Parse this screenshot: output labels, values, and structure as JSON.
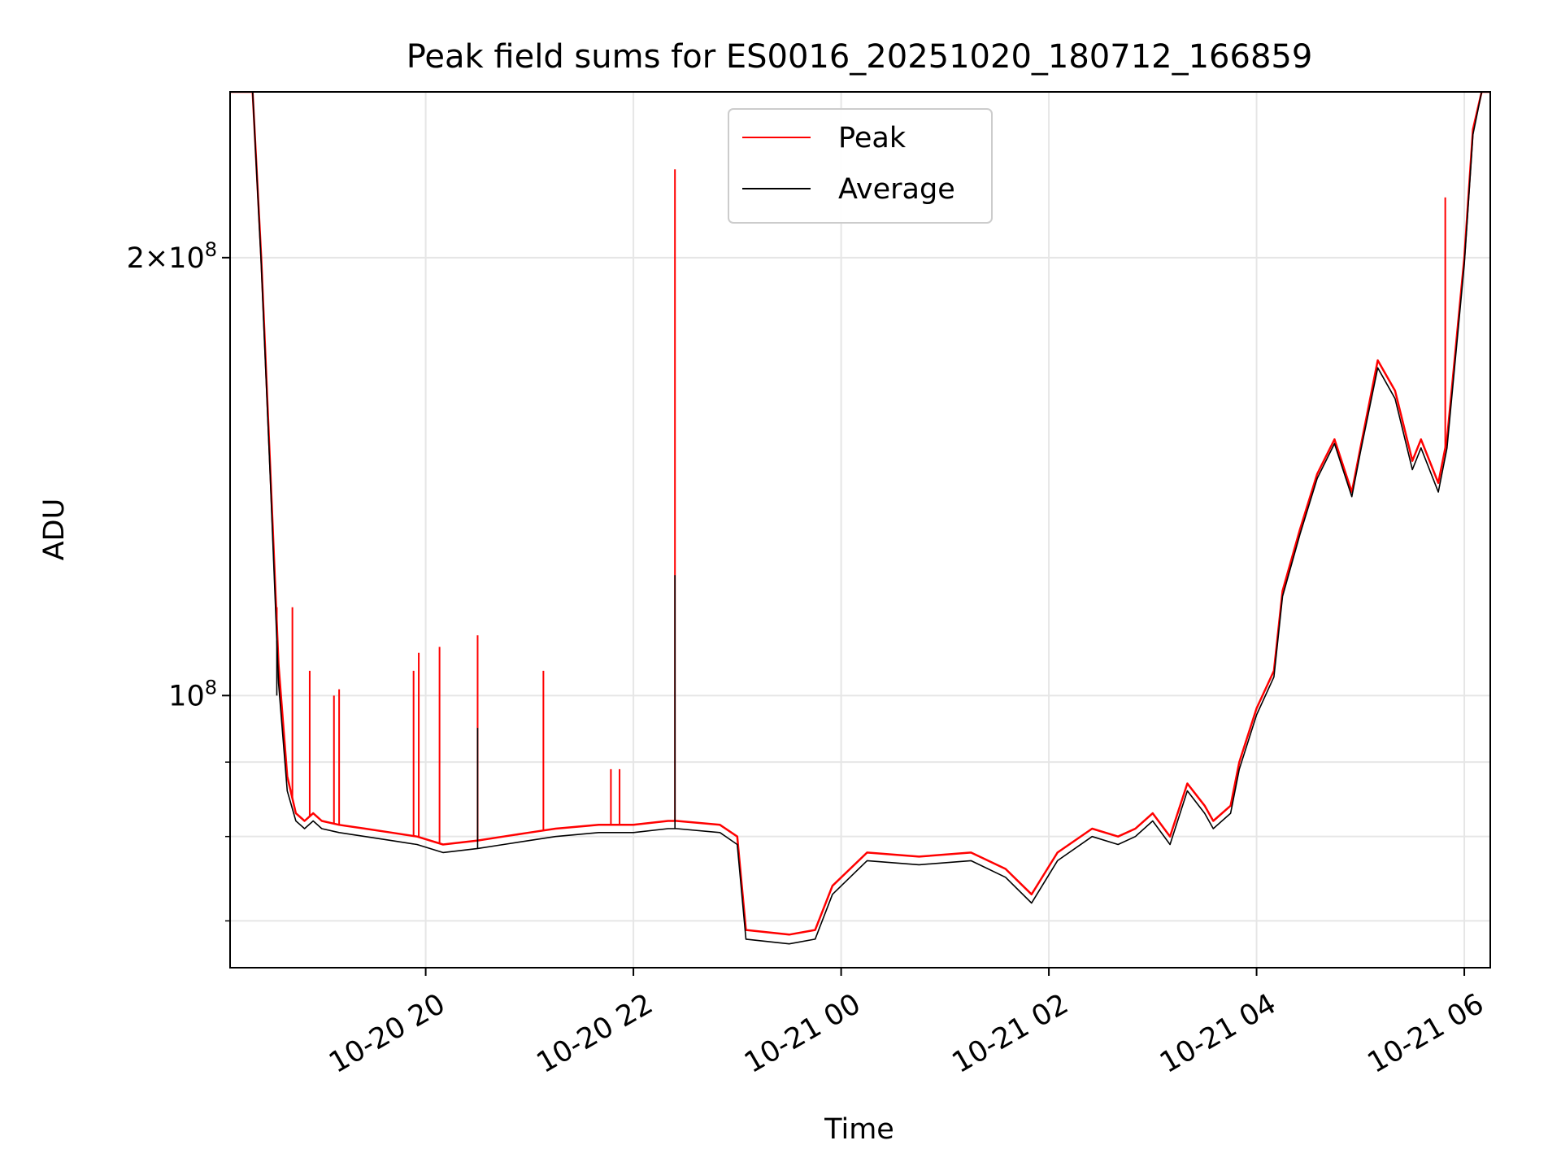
{
  "chart_data": {
    "type": "line",
    "title": "Peak field sums for ES0016_20251020_180712_166859",
    "xlabel": "Time",
    "ylabel": "ADU",
    "y_scale": "log",
    "xlim": [
      "2025-10-20 18:07",
      "2025-10-21 06:15"
    ],
    "ylim": [
      65000000,
      260000000
    ],
    "grid": true,
    "legend_position": "top-center",
    "x_ticks": [
      "10-20 20",
      "10-20 22",
      "10-21 00",
      "10-21 02",
      "10-21 04",
      "10-21 06"
    ],
    "y_major_ticks": [
      {
        "value": 100000000,
        "base": "10",
        "exp": "8"
      },
      {
        "value": 200000000,
        "coef": "2",
        "base": "10",
        "exp": "8"
      }
    ],
    "y_minor_ticks": [
      70000000,
      80000000,
      90000000
    ],
    "series": [
      {
        "name": "Peak",
        "color": "#ff0000",
        "x": [
          "2025-10-20 18:07",
          "2025-10-20 18:20",
          "2025-10-20 18:25",
          "2025-10-20 18:30",
          "2025-10-20 18:35",
          "2025-10-20 18:40",
          "2025-10-20 18:45",
          "2025-10-20 18:50",
          "2025-10-20 18:55",
          "2025-10-20 19:00",
          "2025-10-20 19:10",
          "2025-10-20 19:25",
          "2025-10-20 19:40",
          "2025-10-20 19:55",
          "2025-10-20 20:10",
          "2025-10-20 20:30",
          "2025-10-20 20:45",
          "2025-10-20 21:00",
          "2025-10-20 21:15",
          "2025-10-20 21:40",
          "2025-10-20 22:00",
          "2025-10-20 22:20",
          "2025-10-20 22:25",
          "2025-10-20 22:50",
          "2025-10-20 23:00",
          "2025-10-20 23:05",
          "2025-10-20 23:30",
          "2025-10-20 23:45",
          "2025-10-20 23:55",
          "2025-10-21 00:15",
          "2025-10-21 00:45",
          "2025-10-21 01:15",
          "2025-10-21 01:35",
          "2025-10-21 01:50",
          "2025-10-21 02:05",
          "2025-10-21 02:25",
          "2025-10-21 02:40",
          "2025-10-21 02:50",
          "2025-10-21 03:00",
          "2025-10-21 03:10",
          "2025-10-21 03:20",
          "2025-10-21 03:30",
          "2025-10-21 03:35",
          "2025-10-21 03:45",
          "2025-10-21 03:50",
          "2025-10-21 04:00",
          "2025-10-21 04:10",
          "2025-10-21 04:15",
          "2025-10-21 04:25",
          "2025-10-21 04:35",
          "2025-10-21 04:45",
          "2025-10-21 04:55",
          "2025-10-21 05:00",
          "2025-10-21 05:10",
          "2025-10-21 05:20",
          "2025-10-21 05:30",
          "2025-10-21 05:35",
          "2025-10-21 05:45",
          "2025-10-21 05:50",
          "2025-10-21 06:00",
          "2025-10-21 06:05",
          "2025-10-21 06:10",
          "2025-10-21 06:15"
        ],
        "values": [
          260000000,
          260000000,
          200000000,
          145000000,
          105000000,
          88000000,
          83000000,
          82000000,
          83000000,
          82000000,
          81500000,
          81000000,
          80500000,
          80000000,
          79000000,
          79500000,
          80000000,
          80500000,
          81000000,
          81500000,
          81500000,
          82000000,
          82000000,
          81500000,
          80000000,
          69000000,
          68500000,
          69000000,
          74000000,
          78000000,
          77500000,
          78000000,
          76000000,
          73000000,
          78000000,
          81000000,
          80000000,
          81000000,
          83000000,
          80000000,
          87000000,
          84000000,
          82000000,
          84000000,
          90000000,
          98000000,
          104000000,
          118000000,
          130000000,
          142000000,
          150000000,
          138000000,
          148000000,
          170000000,
          162000000,
          145000000,
          150000000,
          140000000,
          150000000,
          200000000,
          245000000,
          260000000,
          260000000
        ],
        "spikes": [
          {
            "x": "2025-10-20 18:34",
            "value": 115000000
          },
          {
            "x": "2025-10-20 18:43",
            "value": 115000000
          },
          {
            "x": "2025-10-20 18:53",
            "value": 104000000
          },
          {
            "x": "2025-10-20 19:07",
            "value": 100000000
          },
          {
            "x": "2025-10-20 19:10",
            "value": 101000000
          },
          {
            "x": "2025-10-20 19:53",
            "value": 104000000
          },
          {
            "x": "2025-10-20 19:56",
            "value": 107000000
          },
          {
            "x": "2025-10-20 20:08",
            "value": 108000000
          },
          {
            "x": "2025-10-20 20:30",
            "value": 110000000
          },
          {
            "x": "2025-10-20 21:08",
            "value": 104000000
          },
          {
            "x": "2025-10-20 21:47",
            "value": 89000000
          },
          {
            "x": "2025-10-20 21:52",
            "value": 89000000
          },
          {
            "x": "2025-10-20 22:24",
            "value": 230000000
          },
          {
            "x": "2025-10-21 05:49",
            "value": 220000000
          }
        ]
      },
      {
        "name": "Average",
        "color": "#000000",
        "x": [
          "2025-10-20 18:07",
          "2025-10-20 18:20",
          "2025-10-20 18:25",
          "2025-10-20 18:30",
          "2025-10-20 18:35",
          "2025-10-20 18:40",
          "2025-10-20 18:45",
          "2025-10-20 18:50",
          "2025-10-20 18:55",
          "2025-10-20 19:00",
          "2025-10-20 19:10",
          "2025-10-20 19:25",
          "2025-10-20 19:40",
          "2025-10-20 19:55",
          "2025-10-20 20:10",
          "2025-10-20 20:30",
          "2025-10-20 20:45",
          "2025-10-20 21:00",
          "2025-10-20 21:15",
          "2025-10-20 21:40",
          "2025-10-20 22:00",
          "2025-10-20 22:20",
          "2025-10-20 22:25",
          "2025-10-20 22:50",
          "2025-10-20 23:00",
          "2025-10-20 23:05",
          "2025-10-20 23:30",
          "2025-10-20 23:45",
          "2025-10-20 23:55",
          "2025-10-21 00:15",
          "2025-10-21 00:45",
          "2025-10-21 01:15",
          "2025-10-21 01:35",
          "2025-10-21 01:50",
          "2025-10-21 02:05",
          "2025-10-21 02:25",
          "2025-10-21 02:40",
          "2025-10-21 02:50",
          "2025-10-21 03:00",
          "2025-10-21 03:10",
          "2025-10-21 03:20",
          "2025-10-21 03:30",
          "2025-10-21 03:35",
          "2025-10-21 03:45",
          "2025-10-21 03:50",
          "2025-10-21 04:00",
          "2025-10-21 04:10",
          "2025-10-21 04:15",
          "2025-10-21 04:25",
          "2025-10-21 04:35",
          "2025-10-21 04:45",
          "2025-10-21 04:55",
          "2025-10-21 05:00",
          "2025-10-21 05:10",
          "2025-10-21 05:20",
          "2025-10-21 05:30",
          "2025-10-21 05:35",
          "2025-10-21 05:45",
          "2025-10-21 05:50",
          "2025-10-21 06:00",
          "2025-10-21 06:05",
          "2025-10-21 06:10",
          "2025-10-21 06:15"
        ],
        "values": [
          260000000,
          260000000,
          198000000,
          143000000,
          102000000,
          86000000,
          82000000,
          81000000,
          82000000,
          81000000,
          80500000,
          80000000,
          79500000,
          79000000,
          78000000,
          78500000,
          79000000,
          79500000,
          80000000,
          80500000,
          80500000,
          81000000,
          81000000,
          80500000,
          79000000,
          68000000,
          67500000,
          68000000,
          73000000,
          77000000,
          76500000,
          77000000,
          75000000,
          72000000,
          77000000,
          80000000,
          79000000,
          80000000,
          82000000,
          79000000,
          86000000,
          83000000,
          81000000,
          83000000,
          89000000,
          97000000,
          103000000,
          117000000,
          129000000,
          141000000,
          149000000,
          137000000,
          147000000,
          168000000,
          160000000,
          143000000,
          148000000,
          138000000,
          148000000,
          198000000,
          243000000,
          260000000,
          260000000
        ],
        "spikes": [
          {
            "x": "2025-10-20 18:34",
            "value": 100000000
          },
          {
            "x": "2025-10-20 20:30",
            "value": 95000000
          },
          {
            "x": "2025-10-20 22:24",
            "value": 121000000
          }
        ]
      }
    ]
  }
}
